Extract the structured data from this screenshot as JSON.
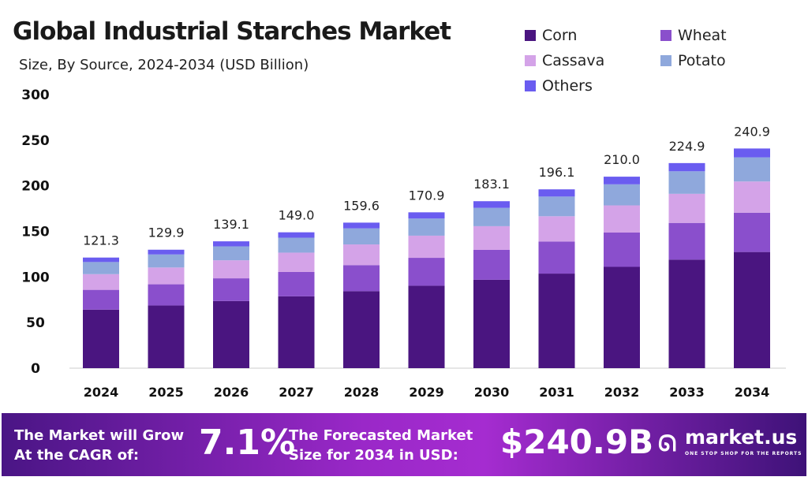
{
  "chart_data": {
    "type": "bar",
    "stacked": true,
    "title": "Global Industrial Starches Market",
    "subtitle": "Size, By Source, 2024-2034 (USD Billion)",
    "categories": [
      "2024",
      "2025",
      "2026",
      "2027",
      "2028",
      "2029",
      "2030",
      "2031",
      "2032",
      "2033",
      "2034"
    ],
    "totals": [
      "121.3",
      "129.9",
      "139.1",
      "149.0",
      "159.6",
      "170.9",
      "183.1",
      "196.1",
      "210.0",
      "224.9",
      "240.9"
    ],
    "series": [
      {
        "name": "Corn",
        "color": "#4a1580",
        "values": [
          64.2,
          68.7,
          73.6,
          78.8,
          84.4,
          90.4,
          96.9,
          103.7,
          111.1,
          119.0,
          127.4
        ]
      },
      {
        "name": "Wheat",
        "color": "#8a4fcc",
        "values": [
          21.7,
          23.3,
          24.9,
          26.7,
          28.6,
          30.6,
          32.8,
          35.1,
          37.6,
          40.3,
          43.1
        ]
      },
      {
        "name": "Cassava",
        "color": "#d4a3e8",
        "values": [
          17.2,
          18.4,
          19.8,
          21.2,
          22.7,
          24.3,
          26.0,
          27.8,
          29.8,
          31.9,
          34.2
        ]
      },
      {
        "name": "Potato",
        "color": "#8fa8dc",
        "values": [
          13.3,
          14.3,
          15.3,
          16.4,
          17.6,
          18.8,
          20.1,
          21.6,
          23.1,
          24.7,
          26.5
        ]
      },
      {
        "name": "Others",
        "color": "#6a5cf0",
        "values": [
          4.9,
          5.2,
          5.5,
          5.9,
          6.3,
          6.8,
          7.3,
          7.9,
          8.4,
          9.0,
          9.7
        ]
      }
    ],
    "yticks": [
      "0",
      "50",
      "100",
      "150",
      "200",
      "250",
      "300"
    ],
    "ylim": [
      0,
      300
    ],
    "grid": false,
    "legend": "top-right"
  },
  "banner": {
    "cagr_label_1": "The Market will Grow",
    "cagr_label_2": "At the CAGR of:",
    "cagr": "7.1%",
    "forecast_label_1": "The Forecasted Market",
    "forecast_label_2": "Size for 2034 in USD:",
    "forecast": "$240.9B",
    "brand": "market.us",
    "tagline": "ONE STOP SHOP FOR THE REPORTS"
  }
}
